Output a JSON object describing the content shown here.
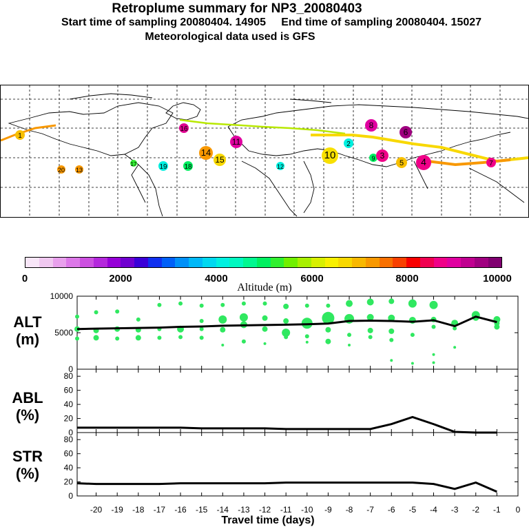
{
  "header": {
    "title": "Retroplume summary for NP3_20080403",
    "start_label": "Start time of sampling 20080404. 14905",
    "end_label": "End time of sampling 20080404. 15027",
    "met_label": "Meteorological data used is GFS"
  },
  "colorbar": {
    "label": "Altitude (m)",
    "ticks": [
      "0",
      "2000",
      "4000",
      "6000",
      "8000",
      "10000"
    ],
    "colors": [
      "#f8e6f8",
      "#f0c8f0",
      "#e8a0ec",
      "#dc78e8",
      "#cc50e0",
      "#b428dc",
      "#9600d8",
      "#7000d0",
      "#3a00d8",
      "#1030f0",
      "#0060f8",
      "#0090f8",
      "#00b8f8",
      "#00d8f0",
      "#00f0e0",
      "#00f8c0",
      "#00f890",
      "#00f060",
      "#30f030",
      "#70f000",
      "#a8f000",
      "#d8f000",
      "#f8f000",
      "#f8d800",
      "#f8b800",
      "#f89800",
      "#f87000",
      "#f84000",
      "#f80000",
      "#f00050",
      "#f00088",
      "#e000a0",
      "#c00090",
      "#a00080",
      "#800070"
    ]
  },
  "map_labels": [
    {
      "t": "1",
      "c": "#f8c000"
    },
    {
      "t": "16",
      "c": "#e00090"
    },
    {
      "t": "8",
      "c": "#e000a0"
    },
    {
      "t": "6",
      "c": "#a00080"
    },
    {
      "t": "14",
      "c": "#f89800"
    },
    {
      "t": "11",
      "c": "#e000a0"
    },
    {
      "t": "15",
      "c": "#f8d800"
    },
    {
      "t": "10",
      "c": "#f8e000"
    },
    {
      "t": "4",
      "c": "#f00088"
    },
    {
      "t": "5",
      "c": "#f8c000"
    },
    {
      "t": "20",
      "c": "#f89800"
    },
    {
      "t": "13",
      "c": "#f89800"
    },
    {
      "t": "17",
      "c": "#30f030"
    },
    {
      "t": "19",
      "c": "#00f0e0"
    },
    {
      "t": "12",
      "c": "#00f0e0"
    },
    {
      "t": "9",
      "c": "#00f060"
    },
    {
      "t": "3",
      "c": "#f00088"
    },
    {
      "t": "2",
      "c": "#00f0e0"
    },
    {
      "t": "7",
      "c": "#f00088"
    },
    {
      "t": "18",
      "c": "#00f060"
    }
  ],
  "panels": {
    "alt": {
      "label_line1": "ALT",
      "label_line2": "(m)"
    },
    "abl": {
      "label_line1": "ABL",
      "label_line2": "(%)"
    },
    "str": {
      "label_line1": "STR",
      "label_line2": "(%)"
    },
    "xlabel": "Travel time (days)"
  },
  "chart_data": [
    {
      "type": "line",
      "title": "ALT (m)",
      "xlabel": "Travel time (days)",
      "ylabel": "ALT (m)",
      "xlim": [
        -20.9,
        0
      ],
      "ylim": [
        0,
        10000
      ],
      "yticks": [
        "10000",
        "5000",
        "0"
      ],
      "ytick_values": [
        10000,
        5000,
        0
      ],
      "x": [
        -20.9,
        -20,
        -19,
        -18,
        -17,
        -16,
        -15,
        -14,
        -13,
        -12,
        -11,
        -10,
        -9,
        -8,
        -7,
        -6,
        -5,
        -4,
        -3,
        -2,
        -1
      ],
      "series": [
        {
          "name": "mean altitude",
          "values": [
            5500,
            5550,
            5600,
            5650,
            5700,
            5800,
            5850,
            5950,
            6000,
            6050,
            6100,
            6150,
            6250,
            6600,
            6650,
            6600,
            6500,
            6700,
            5900,
            7200,
            6450
          ]
        }
      ],
      "scatter_points": [
        [
          -20.9,
          7200,
          3
        ],
        [
          -20.9,
          5500,
          4
        ],
        [
          -20.9,
          4200,
          3
        ],
        [
          -20,
          7800,
          3
        ],
        [
          -20,
          5300,
          4
        ],
        [
          -20,
          4300,
          4
        ],
        [
          -19,
          7900,
          3
        ],
        [
          -19,
          5500,
          4
        ],
        [
          -19,
          4200,
          3
        ],
        [
          -18,
          6800,
          3
        ],
        [
          -18,
          5400,
          4
        ],
        [
          -18,
          4300,
          4
        ],
        [
          -17,
          8800,
          3
        ],
        [
          -17,
          5500,
          3
        ],
        [
          -17,
          4300,
          3
        ],
        [
          -16,
          9000,
          3
        ],
        [
          -16,
          5500,
          5
        ],
        [
          -16,
          4400,
          3
        ],
        [
          -15,
          8700,
          3
        ],
        [
          -15,
          6600,
          3
        ],
        [
          -15,
          5500,
          3
        ],
        [
          -15,
          4300,
          3
        ],
        [
          -14,
          8800,
          3
        ],
        [
          -14,
          6800,
          6
        ],
        [
          -14,
          5400,
          4
        ],
        [
          -14,
          3300,
          2
        ],
        [
          -13,
          9000,
          3
        ],
        [
          -13,
          7100,
          6
        ],
        [
          -13,
          6100,
          5
        ],
        [
          -13,
          3800,
          3
        ],
        [
          -12,
          9000,
          3
        ],
        [
          -12,
          7000,
          4
        ],
        [
          -12,
          5500,
          4
        ],
        [
          -12,
          3500,
          2
        ],
        [
          -11,
          8600,
          4
        ],
        [
          -11,
          6600,
          4
        ],
        [
          -11,
          5000,
          6
        ],
        [
          -11,
          4400,
          3
        ],
        [
          -10,
          8700,
          3
        ],
        [
          -10,
          6300,
          8
        ],
        [
          -10,
          4500,
          3
        ],
        [
          -10,
          3700,
          2
        ],
        [
          -9,
          8700,
          3
        ],
        [
          -9,
          7000,
          9
        ],
        [
          -9,
          5400,
          4
        ],
        [
          -9,
          3800,
          4
        ],
        [
          -8,
          9000,
          5
        ],
        [
          -8,
          6900,
          7
        ],
        [
          -8,
          4700,
          3
        ],
        [
          -8,
          3300,
          2
        ],
        [
          -7,
          9200,
          5
        ],
        [
          -7,
          7100,
          5
        ],
        [
          -7,
          5300,
          4
        ],
        [
          -7,
          4400,
          3
        ],
        [
          -6,
          9300,
          4
        ],
        [
          -6,
          7000,
          5
        ],
        [
          -6,
          5200,
          4
        ],
        [
          -6,
          4000,
          3
        ],
        [
          -6,
          1200,
          2
        ],
        [
          -5,
          9000,
          6
        ],
        [
          -5,
          6700,
          5
        ],
        [
          -5,
          4700,
          3
        ],
        [
          -5,
          800,
          2
        ],
        [
          -4,
          8800,
          6
        ],
        [
          -4,
          6800,
          4
        ],
        [
          -4,
          5800,
          3
        ],
        [
          -4,
          2000,
          2
        ],
        [
          -4,
          900,
          2
        ],
        [
          -3,
          6300,
          5
        ],
        [
          -3,
          5600,
          3
        ],
        [
          -3,
          3000,
          2
        ],
        [
          -2,
          7400,
          6
        ],
        [
          -2,
          7100,
          5
        ],
        [
          -1,
          6800,
          5
        ],
        [
          -1,
          6300,
          4
        ],
        [
          -1,
          5800,
          4
        ]
      ]
    },
    {
      "type": "line",
      "title": "ABL (%)",
      "ylabel": "ABL (%)",
      "xlim": [
        -20.9,
        0
      ],
      "ylim": [
        0,
        90
      ],
      "yticks": [
        "80",
        "60",
        "40",
        "20",
        "0"
      ],
      "ytick_values": [
        80,
        60,
        40,
        20,
        0
      ],
      "x": [
        -20.9,
        -20,
        -19,
        -18,
        -17,
        -16,
        -15,
        -14,
        -13,
        -12,
        -11,
        -10,
        -9,
        -8,
        -7,
        -6,
        -5,
        -4,
        -3,
        -2,
        -1
      ],
      "series": [
        {
          "name": "ABL",
          "values": [
            7,
            7,
            7,
            7,
            7,
            7,
            6,
            6,
            6,
            6,
            5,
            5,
            5,
            5,
            5,
            12,
            22,
            12,
            1,
            0,
            0
          ]
        }
      ]
    },
    {
      "type": "line",
      "title": "STR (%)",
      "ylabel": "STR (%)",
      "xlabel": "Travel time (days)",
      "xlim": [
        -20.9,
        0
      ],
      "ylim": [
        0,
        90
      ],
      "yticks": [
        "80",
        "60",
        "40",
        "20",
        "0"
      ],
      "ytick_values": [
        80,
        60,
        40,
        20,
        0
      ],
      "xticks": [
        "-20",
        "-19",
        "-18",
        "-17",
        "-16",
        "-15",
        "-14",
        "-13",
        "-12",
        "-11",
        "-10",
        "-9",
        "-8",
        "-7",
        "-6",
        "-5",
        "-4",
        "-3",
        "-2",
        "-1",
        "0"
      ],
      "xtick_values": [
        -20,
        -19,
        -18,
        -17,
        -16,
        -15,
        -14,
        -13,
        -12,
        -11,
        -10,
        -9,
        -8,
        -7,
        -6,
        -5,
        -4,
        -3,
        -2,
        -1,
        0
      ],
      "x": [
        -20.9,
        -20,
        -19,
        -18,
        -17,
        -16,
        -15,
        -14,
        -13,
        -12,
        -11,
        -10,
        -9,
        -8,
        -7,
        -6,
        -5,
        -4,
        -3,
        -2,
        -1
      ],
      "series": [
        {
          "name": "STR",
          "values": [
            18,
            17,
            17,
            17,
            17,
            18,
            18,
            18,
            18,
            18,
            19,
            19,
            19,
            19,
            19,
            19,
            19,
            17,
            10,
            19,
            6
          ]
        }
      ]
    }
  ]
}
